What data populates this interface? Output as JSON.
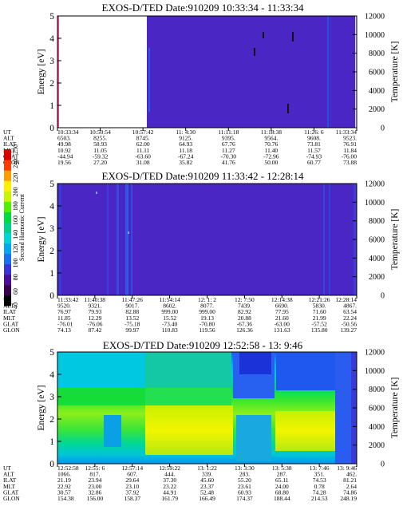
{
  "chart_data": [
    {
      "type": "heatmap",
      "title": "EXOS-D/TED   Date:910209  10:33:34 - 11:33:34",
      "ylabel": "Energy [eV]",
      "y2label": "Temperature [K]",
      "ylim": [
        0,
        5
      ],
      "y2lim": [
        0,
        12000
      ],
      "yticks": [
        "0",
        "1",
        "2",
        "3",
        "4",
        "5"
      ],
      "y2ticks": [
        "0",
        "2000",
        "4000",
        "6000",
        "8000",
        "10000",
        "12000"
      ],
      "panel_color": "#4a26c4",
      "no_data_until_fraction": 0.42,
      "orbit_labels": [
        "UT",
        "ALT",
        "ILAT",
        "MLT",
        "GLAT",
        "GLON"
      ],
      "columns": [
        [
          "10:33:34",
          "6503.",
          "49.98",
          "10.92",
          "-44.94",
          "19.56"
        ],
        [
          "10:50:54",
          "8255.",
          "58.93",
          "11.05",
          "-59.32",
          "27.20"
        ],
        [
          "10:57:42",
          "8745.",
          "62.00",
          "11.11",
          "-63.60",
          "31.08"
        ],
        [
          "11: 4:30",
          "9125.",
          "64.93",
          "11.18",
          "-67.24",
          "35.82"
        ],
        [
          "11:11:18",
          "9395.",
          "67.76",
          "11.27",
          "-70.30",
          "41.76"
        ],
        [
          "11:18:38",
          "9564.",
          "70.76",
          "11.40",
          "-72.96",
          "50.00"
        ],
        [
          "11:26: 6",
          "9608.",
          "73.81",
          "11.57",
          "-74.93",
          "60.77"
        ],
        [
          "11:33:34",
          "9523.",
          "76.91",
          "11.84",
          "-76.00",
          "73.88"
        ]
      ]
    },
    {
      "type": "heatmap",
      "title": "EXOS-D/TED   Date:910209  11:33:42 - 12:28:14",
      "ylabel": "Energy [eV]",
      "y2label": "Temperature [K]",
      "ylim": [
        0,
        5
      ],
      "y2lim": [
        0,
        12000
      ],
      "yticks": [
        "0",
        "1",
        "2",
        "3",
        "4",
        "5"
      ],
      "y2ticks": [
        "0",
        "2000",
        "4000",
        "6000",
        "8000",
        "10000",
        "12000"
      ],
      "panel_color": "#4a26c4",
      "orbit_labels": [
        "UT",
        "ALT",
        "ILAT",
        "MLT",
        "GLAT",
        "GLON"
      ],
      "columns": [
        [
          "11:33:42",
          "9520.",
          "76.97",
          "11.85",
          "-76.01",
          "74.13"
        ],
        [
          "11:40:38",
          "9321.",
          "79.93",
          "12.29",
          "-76.06",
          "87.42"
        ],
        [
          "11:47:26",
          "9017.",
          "82.88",
          "13.52",
          "-75.18",
          "99.97"
        ],
        [
          "11:54:14",
          "8602.",
          "999.00",
          "15.52",
          "-73.40",
          "110.83"
        ],
        [
          "12: 1: 2",
          "8077.",
          "999.00",
          "19.13",
          "-70.80",
          "119.56"
        ],
        [
          "12: 7:50",
          "7439.",
          "82.92",
          "20.88",
          "-67.36",
          "126.36"
        ],
        [
          "12:14:38",
          "6690.",
          "77.95",
          "21.60",
          "-63.00",
          "131.63"
        ],
        [
          "12:21:26",
          "5830.",
          "71.60",
          "21.99",
          "-57.52",
          "135.80"
        ],
        [
          "12:28:14",
          "4867.",
          "63.54",
          "22.24",
          "-50.56",
          "139.27"
        ]
      ]
    },
    {
      "type": "heatmap",
      "title": "EXOS-D/TED   Date:910209  12:52:58 - 13: 9:46",
      "ylabel": "Energy [eV]",
      "y2label": "Temperature [K]",
      "ylim": [
        0,
        5
      ],
      "y2lim": [
        0,
        12000
      ],
      "yticks": [
        "0",
        "1",
        "2",
        "3",
        "4",
        "5"
      ],
      "y2ticks": [
        "0",
        "2000",
        "4000",
        "6000",
        "8000",
        "10000",
        "12000"
      ],
      "orbit_labels": [
        "UT",
        "ALT",
        "ILAT",
        "MLT",
        "GLAT",
        "GLON"
      ],
      "columns": [
        [
          "12:52:58",
          "1066.",
          "21.19",
          "22.92",
          "30.57",
          "154.38"
        ],
        [
          "12:55: 6",
          "817.",
          "23.94",
          "23.00",
          "32.86",
          "156.00"
        ],
        [
          "12:57:14",
          "607.",
          "29.64",
          "23.10",
          "37.92",
          "158.37"
        ],
        [
          "12:59:22",
          "444.",
          "37.30",
          "23.22",
          "44.91",
          "161.79"
        ],
        [
          "13: 1:22",
          "339.",
          "45.60",
          "23.37",
          "52.48",
          "166.49"
        ],
        [
          "13: 3:30",
          "283.",
          "55.20",
          "23.61",
          "60.93",
          "174.37"
        ],
        [
          "13: 5:38",
          "287.",
          "65.11",
          "24.00",
          "68.80",
          "188.44"
        ],
        [
          "13: 7:46",
          "351.",
          "74.53",
          "0.78",
          "74.28",
          "214.53"
        ],
        [
          "13: 9:46",
          "462.",
          "81.21",
          "2.64",
          "74.86",
          "248.19"
        ]
      ]
    }
  ],
  "colorbar": {
    "label": "Second Harmonic Current",
    "ticks": [
      "40",
      "60",
      "80",
      "100",
      "120",
      "140",
      "160",
      "180",
      "200",
      "220",
      "240",
      "250"
    ],
    "colors": [
      "#000000",
      "#3a0050",
      "#4a0f9a",
      "#3535d8",
      "#1a6ef0",
      "#00a6f0",
      "#00d6d2",
      "#00d28c",
      "#00dc3a",
      "#50f000",
      "#c8f500",
      "#ffef00",
      "#ff9c00",
      "#ff3c00",
      "#dc0000"
    ]
  }
}
